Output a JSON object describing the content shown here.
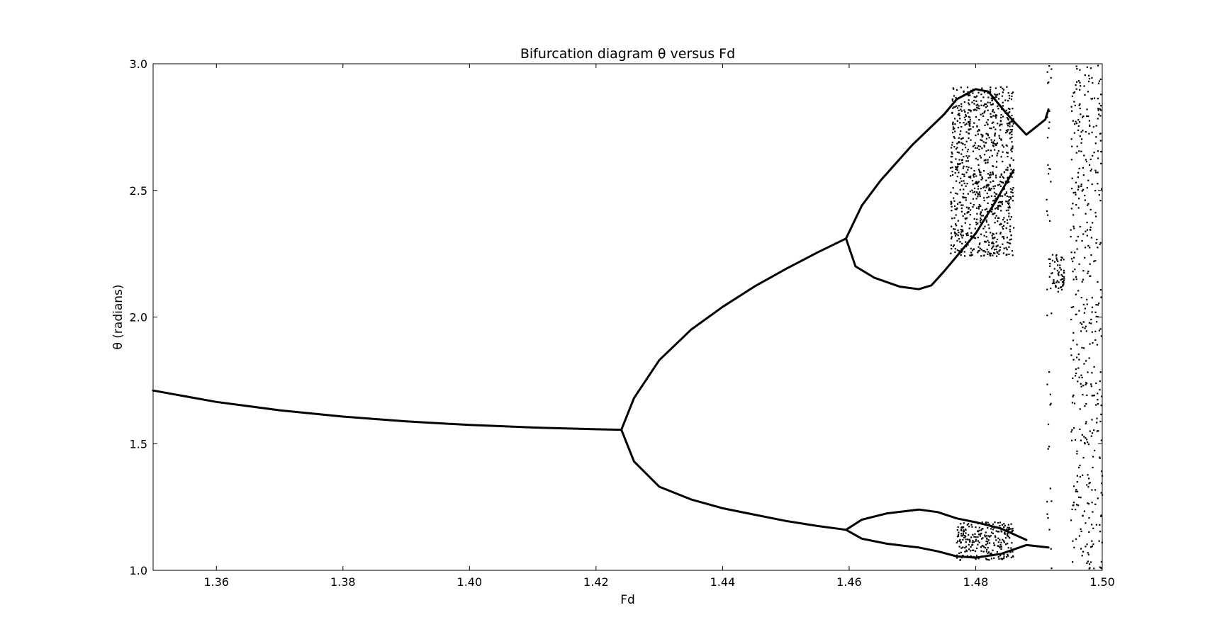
{
  "chart_data": {
    "type": "scatter",
    "title": "Bifurcation diagram  θ versus Fd",
    "xlabel": "Fd",
    "ylabel": "θ (radians)",
    "xlim": [
      1.35,
      1.5
    ],
    "ylim": [
      1.0,
      3.0
    ],
    "xticks": [
      1.36,
      1.38,
      1.4,
      1.42,
      1.44,
      1.46,
      1.48,
      1.5
    ],
    "xtick_labels": [
      "1.36",
      "1.38",
      "1.40",
      "1.42",
      "1.44",
      "1.46",
      "1.48",
      "1.50"
    ],
    "yticks": [
      1.0,
      1.5,
      2.0,
      2.5,
      3.0
    ],
    "ytick_labels": [
      "1.0",
      "1.5",
      "2.0",
      "2.5",
      "3.0"
    ],
    "grid": false,
    "legend": "none",
    "marker_color": "#000000",
    "series": [
      {
        "label_ref": "period-1 branch",
        "points": [
          [
            1.35,
            1.71
          ],
          [
            1.36,
            1.665
          ],
          [
            1.37,
            1.632
          ],
          [
            1.38,
            1.607
          ],
          [
            1.39,
            1.588
          ],
          [
            1.4,
            1.574
          ],
          [
            1.41,
            1.564
          ],
          [
            1.42,
            1.557
          ],
          [
            1.424,
            1.555
          ]
        ]
      },
      {
        "label_ref": "period-2 upper branch",
        "points": [
          [
            1.424,
            1.555
          ],
          [
            1.426,
            1.68
          ],
          [
            1.43,
            1.83
          ],
          [
            1.435,
            1.95
          ],
          [
            1.44,
            2.04
          ],
          [
            1.445,
            2.12
          ],
          [
            1.45,
            2.19
          ],
          [
            1.455,
            2.255
          ],
          [
            1.4595,
            2.31
          ]
        ]
      },
      {
        "label_ref": "period-2 lower branch",
        "points": [
          [
            1.424,
            1.555
          ],
          [
            1.426,
            1.43
          ],
          [
            1.43,
            1.33
          ],
          [
            1.435,
            1.28
          ],
          [
            1.44,
            1.245
          ],
          [
            1.445,
            1.22
          ],
          [
            1.45,
            1.195
          ],
          [
            1.455,
            1.175
          ],
          [
            1.4595,
            1.16
          ]
        ]
      },
      {
        "label_ref": "period-4 upper outer",
        "points": [
          [
            1.4595,
            2.31
          ],
          [
            1.462,
            2.44
          ],
          [
            1.465,
            2.54
          ],
          [
            1.47,
            2.68
          ],
          [
            1.475,
            2.8
          ],
          [
            1.477,
            2.86
          ],
          [
            1.48,
            2.9
          ],
          [
            1.482,
            2.89
          ],
          [
            1.485,
            2.8
          ],
          [
            1.488,
            2.72
          ],
          [
            1.491,
            2.78
          ],
          [
            1.4915,
            2.82
          ]
        ]
      },
      {
        "label_ref": "period-4 upper inner",
        "points": [
          [
            1.4595,
            2.31
          ],
          [
            1.461,
            2.2
          ],
          [
            1.464,
            2.155
          ],
          [
            1.468,
            2.12
          ],
          [
            1.471,
            2.11
          ],
          [
            1.473,
            2.125
          ],
          [
            1.475,
            2.18
          ],
          [
            1.477,
            2.24
          ],
          [
            1.48,
            2.33
          ],
          [
            1.483,
            2.45
          ],
          [
            1.486,
            2.58
          ]
        ]
      },
      {
        "label_ref": "period-4 lower outer",
        "points": [
          [
            1.4595,
            1.16
          ],
          [
            1.462,
            1.2
          ],
          [
            1.466,
            1.225
          ],
          [
            1.471,
            1.24
          ],
          [
            1.474,
            1.23
          ],
          [
            1.477,
            1.205
          ],
          [
            1.48,
            1.19
          ],
          [
            1.484,
            1.165
          ],
          [
            1.488,
            1.12
          ]
        ]
      },
      {
        "label_ref": "period-4 lower inner",
        "points": [
          [
            1.4595,
            1.16
          ],
          [
            1.462,
            1.125
          ],
          [
            1.466,
            1.105
          ],
          [
            1.471,
            1.09
          ],
          [
            1.474,
            1.075
          ],
          [
            1.477,
            1.055
          ],
          [
            1.48,
            1.05
          ],
          [
            1.484,
            1.065
          ],
          [
            1.488,
            1.1
          ],
          [
            1.4915,
            1.09
          ]
        ]
      }
    ],
    "chaotic_bands": [
      {
        "label_ref": "upper chaotic band",
        "x_range": [
          1.476,
          1.486
        ],
        "y_range": [
          2.24,
          2.91
        ]
      },
      {
        "label_ref": "lower chaotic band",
        "x_range": [
          1.477,
          1.486
        ],
        "y_range": [
          1.04,
          1.19
        ]
      },
      {
        "label_ref": "scatter at Fd 1.4915",
        "x_range": [
          1.4912,
          1.492
        ],
        "y_range": [
          1.0,
          3.0
        ]
      },
      {
        "label_ref": "scatter near Fd 1.492-1.494",
        "x_range": [
          1.4915,
          1.494
        ],
        "y_range": [
          2.1,
          2.25
        ]
      },
      {
        "label_ref": "scatter near Fd 1.495-1.50",
        "x_range": [
          1.495,
          1.5
        ],
        "y_range": [
          1.0,
          3.0
        ]
      }
    ]
  }
}
